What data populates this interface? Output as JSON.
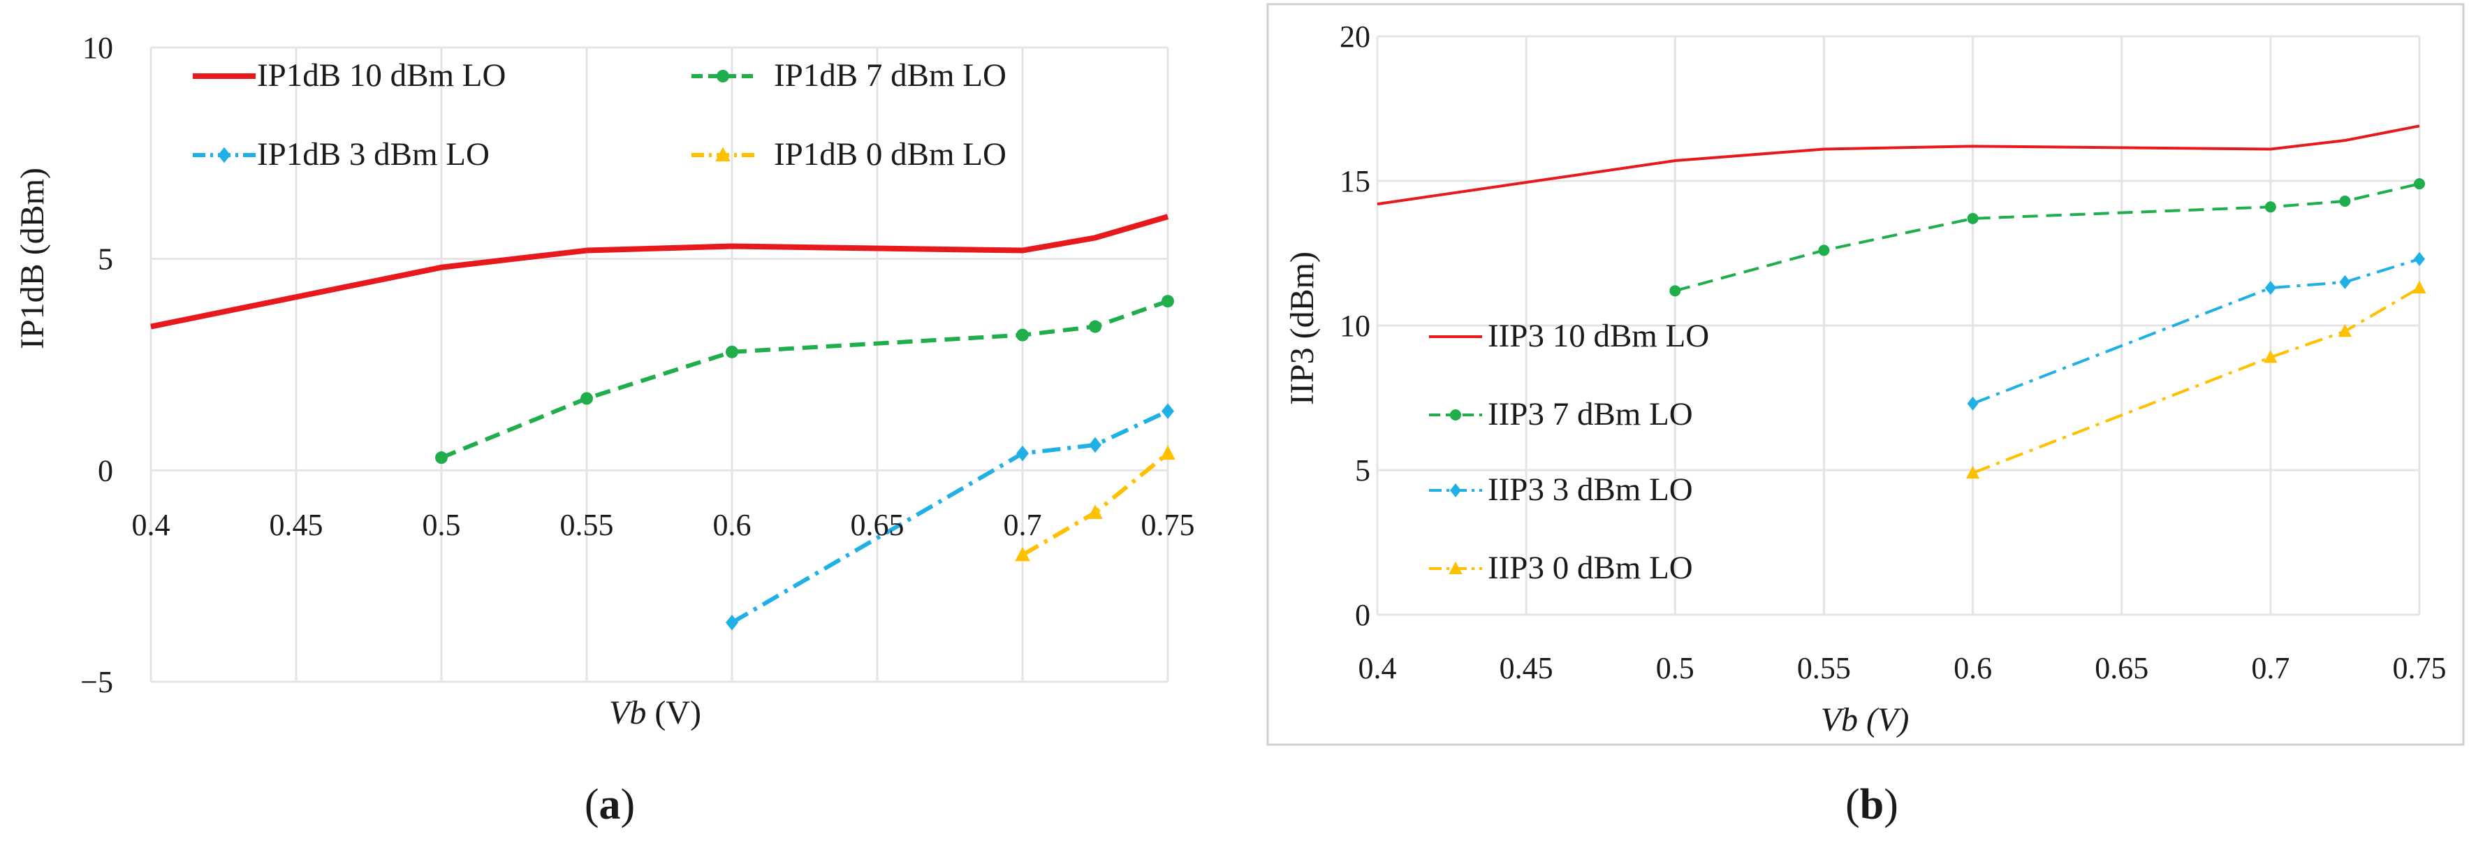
{
  "chart_data": [
    {
      "type": "line",
      "panel": "a",
      "caption": "(a)",
      "caption_prefix": "(",
      "caption_letter": "a",
      "caption_suffix": ")",
      "title": "",
      "xlabel": "Vb (V)",
      "xlabel_var": "Vb",
      "xlabel_unit": " (V)",
      "ylabel": "IP1dB (dBm)",
      "xlim": [
        0.4,
        0.75
      ],
      "ylim": [
        -5,
        10
      ],
      "grid": true,
      "legend_position": "top",
      "xticks": [
        0.4,
        0.45,
        0.5,
        0.55,
        0.6,
        0.65,
        0.7,
        0.75
      ],
      "xtick_labels": [
        "0.4",
        "0.45",
        "0.5",
        "0.55",
        "0.6",
        "0.65",
        "0.7",
        "0.75"
      ],
      "yticks": [
        -5,
        0,
        5,
        10
      ],
      "ytick_labels": [
        "−5",
        "0",
        "5",
        "10"
      ],
      "series": [
        {
          "name": "IP1dB 10 dBm LO",
          "color": "#e8191d",
          "dash": "solid",
          "marker": "none",
          "x": [
            0.4,
            0.5,
            0.55,
            0.6,
            0.7,
            0.725,
            0.75
          ],
          "y": [
            3.4,
            4.8,
            5.2,
            5.3,
            5.2,
            5.5,
            6.0
          ]
        },
        {
          "name": "IP1dB 7 dBm LO",
          "color": "#1fae4b",
          "dash": "dash",
          "marker": "circle",
          "x": [
            0.5,
            0.55,
            0.6,
            0.7,
            0.725,
            0.75
          ],
          "y": [
            0.3,
            1.7,
            2.8,
            3.2,
            3.4,
            4.0
          ]
        },
        {
          "name": "IP1dB 3 dBm LO",
          "color": "#1fb0e6",
          "dash": "dashdot",
          "marker": "diamond",
          "x": [
            0.6,
            0.7,
            0.725,
            0.75
          ],
          "y": [
            -3.6,
            0.4,
            0.6,
            1.4
          ]
        },
        {
          "name": "IP1dB 0 dBm LO",
          "color": "#ffc000",
          "dash": "dashdot",
          "marker": "triangle",
          "x": [
            0.7,
            0.725,
            0.75
          ],
          "y": [
            -2.0,
            -1.0,
            0.4
          ]
        }
      ]
    },
    {
      "type": "line",
      "panel": "b",
      "caption": "(b)",
      "caption_prefix": "(",
      "caption_letter": "b",
      "caption_suffix": ")",
      "title": "",
      "xlabel": "Vb (V)",
      "ylabel": "IIP3 (dBm)",
      "xlim": [
        0.4,
        0.75
      ],
      "ylim": [
        0,
        20
      ],
      "grid": true,
      "legend_position": "left",
      "xticks": [
        0.4,
        0.45,
        0.5,
        0.55,
        0.6,
        0.65,
        0.7,
        0.75
      ],
      "xtick_labels": [
        "0.4",
        "0.45",
        "0.5",
        "0.55",
        "0.6",
        "0.65",
        "0.7",
        "0.75"
      ],
      "yticks": [
        0,
        5,
        10,
        15,
        20
      ],
      "ytick_labels": [
        "0",
        "5",
        "10",
        "15",
        "20"
      ],
      "series": [
        {
          "name": "IIP3 10 dBm LO",
          "color": "#e8191d",
          "dash": "solid",
          "marker": "none",
          "x": [
            0.4,
            0.5,
            0.55,
            0.6,
            0.7,
            0.725,
            0.75
          ],
          "y": [
            14.2,
            15.7,
            16.1,
            16.2,
            16.1,
            16.4,
            16.9
          ]
        },
        {
          "name": "IIP3 7 dBm LO",
          "color": "#1fae4b",
          "dash": "dash",
          "marker": "circle",
          "x": [
            0.5,
            0.55,
            0.6,
            0.7,
            0.725,
            0.75
          ],
          "y": [
            11.2,
            12.6,
            13.7,
            14.1,
            14.3,
            14.9
          ]
        },
        {
          "name": "IIP3 3 dBm LO",
          "color": "#1fb0e6",
          "dash": "dashdot",
          "marker": "diamond",
          "x": [
            0.6,
            0.7,
            0.725,
            0.75
          ],
          "y": [
            7.3,
            11.3,
            11.5,
            12.3
          ]
        },
        {
          "name": "IIP3 0 dBm LO",
          "color": "#ffc000",
          "dash": "dashdot",
          "marker": "triangle",
          "x": [
            0.6,
            0.7,
            0.725,
            0.75
          ],
          "y": [
            4.9,
            8.9,
            9.8,
            11.3
          ]
        }
      ]
    }
  ]
}
